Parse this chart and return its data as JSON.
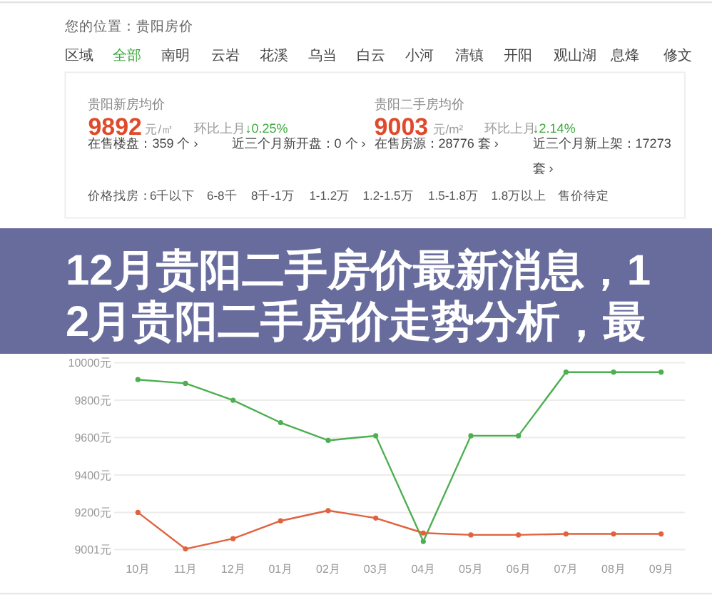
{
  "chart_data": {
    "type": "line",
    "title": "12月贵阳二手房价最新消息，12月贵阳二手房价走势分析，最",
    "categories": [
      "10月",
      "11月",
      "12月",
      "01月",
      "02月",
      "03月",
      "04月",
      "05月",
      "06月",
      "07月",
      "08月",
      "09月"
    ],
    "series": [
      {
        "color": "#4caf50",
        "values": [
          9910,
          9890,
          9800,
          9680,
          9585,
          9610,
          9045,
          9610,
          9610,
          9950,
          9950,
          9950
        ]
      },
      {
        "color": "#e0623f",
        "values": [
          9200,
          9005,
          9060,
          9155,
          9210,
          9170,
          9090,
          9080,
          9080,
          9085,
          9085,
          9085
        ]
      }
    ],
    "ylim": [
      9001,
      10000
    ],
    "yticks": [
      {
        "value": 9001,
        "label": "9001元"
      },
      {
        "value": 9200,
        "label": "9200元"
      },
      {
        "value": 9400,
        "label": "9400元"
      },
      {
        "value": 9600,
        "label": "9600元"
      },
      {
        "value": 9800,
        "label": "9800元"
      },
      {
        "value": 10000,
        "label": "10000元"
      }
    ],
    "grid": "y",
    "marker": "circle",
    "line_style": "solid",
    "annotations": [
      "您的位置：贵阳房价",
      "区域",
      "全部",
      "南明",
      "云岩",
      "花溪",
      "乌当",
      "白云",
      "小河",
      "清镇",
      "开阳",
      "观山湖",
      "息烽",
      "修文",
      "贵阳新房均价",
      "9892",
      "元/㎡",
      "环比上月",
      "↓0.25%",
      "贵阳二手房均价",
      "9003",
      "元/m²",
      "环比上月",
      "↓2.14%",
      "在售楼盘：359 个 ›",
      "近三个月新开盘：0 个 ›",
      "在售房源：28776 套 ›",
      "近三个月新上架：17273 套 ›",
      "价格找房：",
      "6千以下",
      "6-8千",
      "8千-1万",
      "1-1.2万",
      "1.2-1.5万",
      "1.5-1.8万",
      "1.8万以上",
      "售价待定"
    ]
  }
}
